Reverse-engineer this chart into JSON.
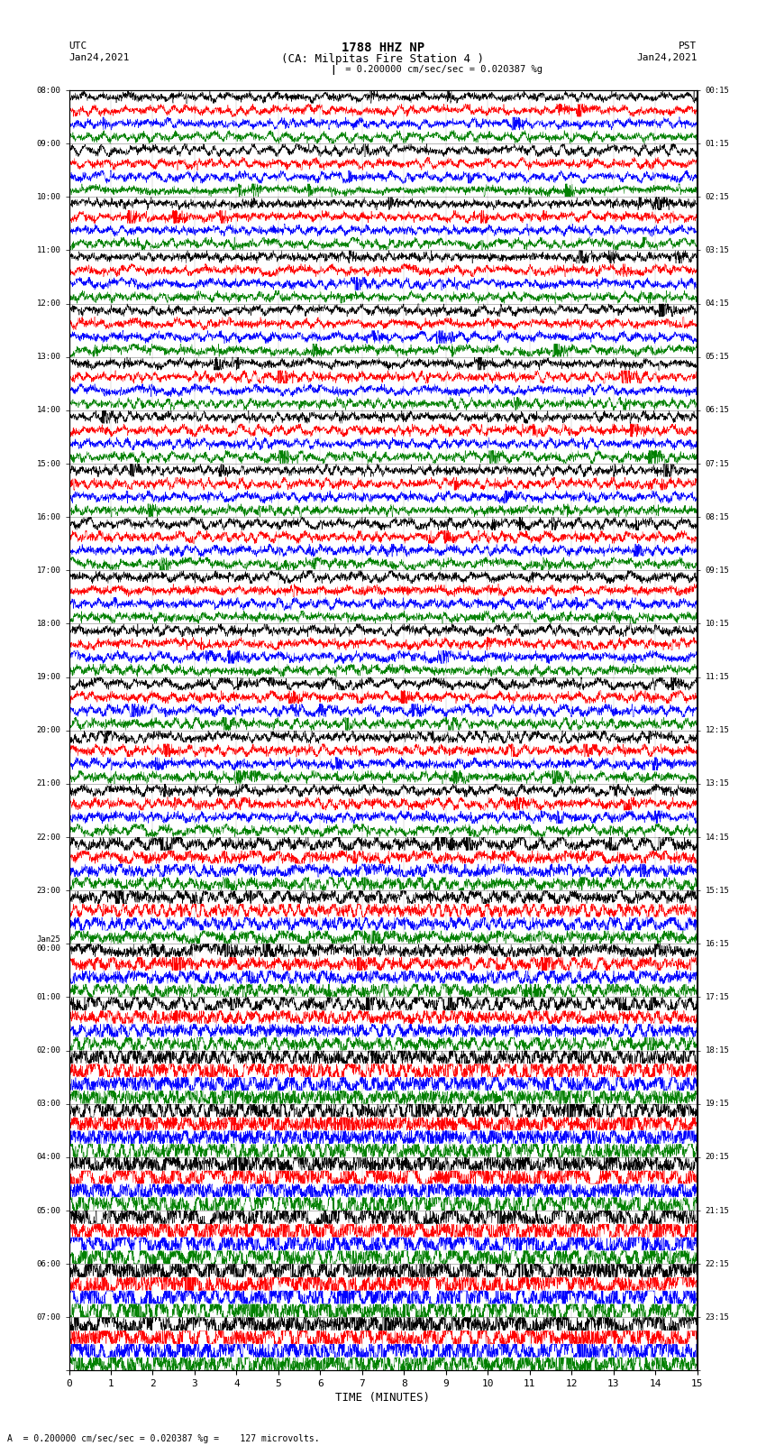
{
  "title_line1": "1788 HHZ NP",
  "title_line2": "(CA: Milpitas Fire Station 4 )",
  "scale_label": "= 0.200000 cm/sec/sec = 0.020387 %g",
  "bottom_label": "A  = 0.200000 cm/sec/sec = 0.020387 %g =    127 microvolts.",
  "utc_label": "UTC",
  "utc_date": "Jan24,2021",
  "pst_label": "PST",
  "pst_date": "Jan24,2021",
  "xlabel": "TIME (MINUTES)",
  "left_times": [
    "08:00",
    "09:00",
    "10:00",
    "11:00",
    "12:00",
    "13:00",
    "14:00",
    "15:00",
    "16:00",
    "17:00",
    "18:00",
    "19:00",
    "20:00",
    "21:00",
    "22:00",
    "23:00",
    "Jan25\n00:00",
    "01:00",
    "02:00",
    "03:00",
    "04:00",
    "05:00",
    "06:00",
    "07:00"
  ],
  "right_times": [
    "00:15",
    "01:15",
    "02:15",
    "03:15",
    "04:15",
    "05:15",
    "06:15",
    "07:15",
    "08:15",
    "09:15",
    "10:15",
    "11:15",
    "12:15",
    "13:15",
    "14:15",
    "15:15",
    "16:15",
    "17:15",
    "18:15",
    "19:15",
    "20:15",
    "21:15",
    "22:15",
    "23:15"
  ],
  "n_rows": 24,
  "n_traces_per_row": 4,
  "colors": [
    "black",
    "red",
    "blue",
    "green"
  ],
  "bg_color": "white",
  "line_width": 0.35,
  "x_ticks": [
    0,
    1,
    2,
    3,
    4,
    5,
    6,
    7,
    8,
    9,
    10,
    11,
    12,
    13,
    14,
    15
  ],
  "xlim": [
    0,
    15
  ],
  "seed": 42
}
